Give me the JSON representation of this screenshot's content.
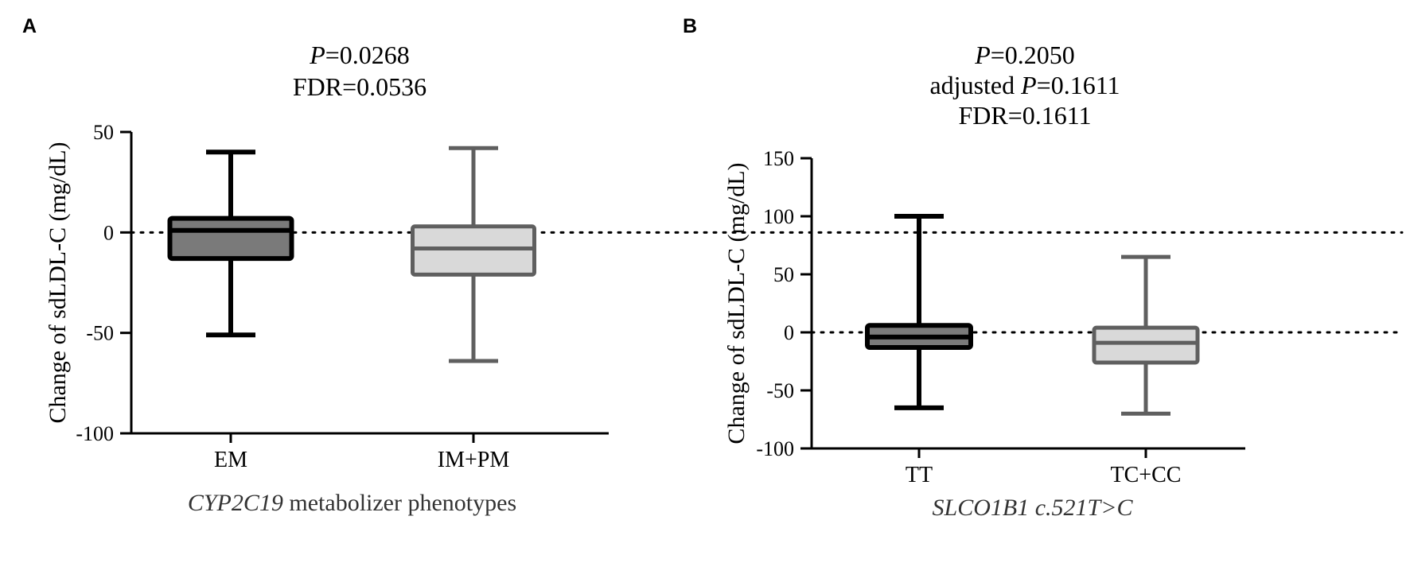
{
  "colors": {
    "axis": "#000000",
    "dark_box_fill": "#7a7a7a",
    "dark_box_stroke": "#000000",
    "light_box_fill": "#d9d9d9",
    "light_box_stroke": "#5f5f5f"
  },
  "chart_data": [
    {
      "type": "box",
      "panel_label": "A",
      "stats": [
        "P=0.0268",
        "FDR=0.0536"
      ],
      "stats_parts": [
        {
          "italic": "P",
          "rest": "=0.0268"
        },
        {
          "italic": "",
          "rest": "FDR=0.0536"
        }
      ],
      "ylabel": "Change of sdLDL-C (mg/dL)",
      "xlabel": "CYP2C19 metabolizer phenotypes",
      "xlabel_parts": {
        "italic": "CYP2C19",
        "rest": " metabolizer phenotypes"
      },
      "ylim": [
        -100,
        50
      ],
      "yticks": [
        50,
        0,
        -50,
        -100
      ],
      "reference_line": 0,
      "categories": [
        "EM",
        "IM+PM"
      ],
      "boxes": [
        {
          "name": "EM",
          "min": -51,
          "q1": -13,
          "median": 1,
          "q3": 7,
          "max": 40,
          "style": "dark"
        },
        {
          "name": "IM+PM",
          "min": -64,
          "q1": -21,
          "median": -8,
          "q3": 3,
          "max": 42,
          "style": "light"
        }
      ]
    },
    {
      "type": "box",
      "panel_label": "B",
      "stats": [
        "P=0.2050",
        "adjusted P=0.1611",
        "FDR=0.1611"
      ],
      "stats_parts": [
        {
          "italic": "P",
          "rest": "=0.2050"
        },
        {
          "prefix": "adjusted ",
          "italic": "P",
          "rest": "=0.1611"
        },
        {
          "italic": "",
          "rest": "FDR=0.1611"
        }
      ],
      "ylabel": "Change of sdLDL-C (mg/dL)",
      "xlabel": "SLCO1B1 c.521T>C",
      "xlabel_parts": {
        "italic": "SLCO1B1 c.521T>C",
        "rest": ""
      },
      "ylim": [
        -100,
        150
      ],
      "yticks": [
        150,
        100,
        50,
        0,
        -50,
        -100
      ],
      "reference_line": 0,
      "categories": [
        "TT",
        "TC+CC"
      ],
      "boxes": [
        {
          "name": "TT",
          "min": -65,
          "q1": -13,
          "median": -4,
          "q3": 6,
          "max": 100,
          "style": "dark"
        },
        {
          "name": "TC+CC",
          "min": -70,
          "q1": -26,
          "median": -9,
          "q3": 4,
          "max": 65,
          "style": "light"
        }
      ]
    }
  ]
}
